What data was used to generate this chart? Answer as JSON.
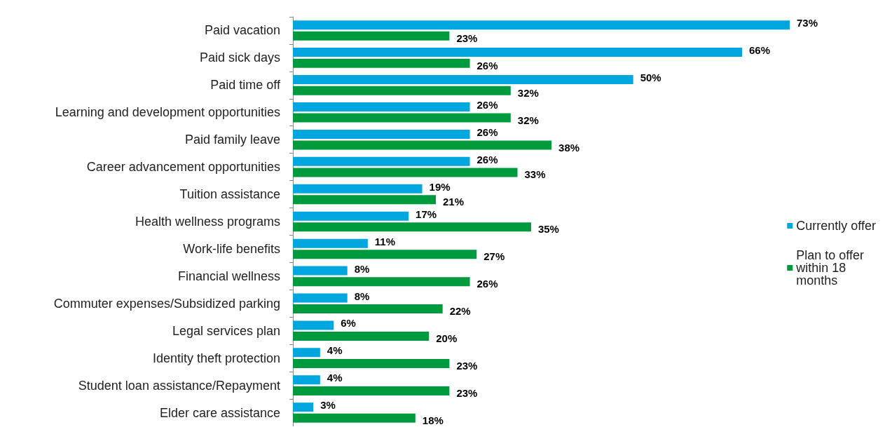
{
  "chart_data": {
    "type": "bar",
    "orientation": "horizontal",
    "categories": [
      "Paid vacation",
      "Paid sick days",
      "Paid time off",
      "Learning and development opportunities",
      "Paid family leave",
      "Career advancement opportunities",
      "Tuition assistance",
      "Health wellness programs",
      "Work-life benefits",
      "Financial wellness",
      "Commuter expenses/Subsidized parking",
      "Legal services plan",
      "Identity theft protection",
      "Student loan assistance/Repayment",
      "Elder care assistance"
    ],
    "series": [
      {
        "name": "Currently offer",
        "color": "#00a6dd",
        "values": [
          73,
          66,
          50,
          26,
          26,
          26,
          19,
          17,
          11,
          8,
          8,
          6,
          4,
          4,
          3
        ],
        "value_labels": [
          "73%",
          "66%",
          "50%",
          "26%",
          "26%",
          "26%",
          "19%",
          "17%",
          "11%",
          "8%",
          "8%",
          "6%",
          "4%",
          "4%",
          "3%"
        ]
      },
      {
        "name": "Plan to offer within 18 months",
        "color": "#009a3e",
        "values": [
          23,
          26,
          32,
          32,
          38,
          33,
          21,
          35,
          27,
          26,
          22,
          20,
          23,
          23,
          18
        ],
        "value_labels": [
          "23%",
          "26%",
          "32%",
          "32%",
          "38%",
          "33%",
          "21%",
          "35%",
          "27%",
          "26%",
          "22%",
          "20%",
          "23%",
          "23%",
          "18%"
        ]
      }
    ],
    "legend": "right"
  }
}
